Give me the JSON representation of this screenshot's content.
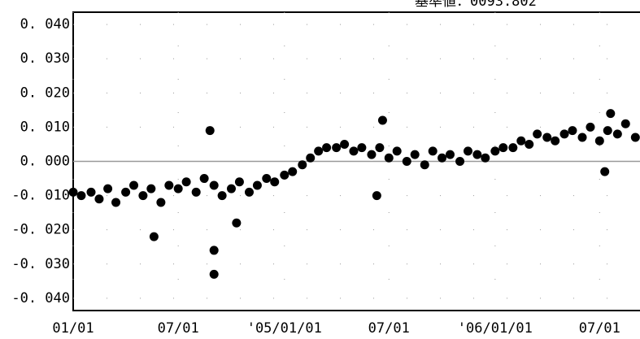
{
  "chart_data": {
    "type": "scatter",
    "title": "基準値：0093.802",
    "xlim": [
      "2004-01-01",
      "2006-09-09"
    ],
    "xticks": [
      {
        "value": "2004-01-01",
        "label": "01/01"
      },
      {
        "value": "2004-07-01",
        "label": "07/01"
      },
      {
        "value": "2005-01-01",
        "label": "'05/01/01"
      },
      {
        "value": "2005-07-01",
        "label": "07/01"
      },
      {
        "value": "2006-01-01",
        "label": "'06/01/01"
      },
      {
        "value": "2006-07-01",
        "label": "07/01"
      }
    ],
    "ylim": [
      -0.0436,
      0.0436
    ],
    "yticks": [
      {
        "value": 0.04,
        "label": "0. 040"
      },
      {
        "value": 0.03,
        "label": "0. 030"
      },
      {
        "value": 0.02,
        "label": "0. 020"
      },
      {
        "value": 0.01,
        "label": "0. 010"
      },
      {
        "value": 0,
        "label": "0. 000"
      },
      {
        "value": -0.01,
        "label": "-0. 010"
      },
      {
        "value": -0.02,
        "label": "-0. 020"
      },
      {
        "value": -0.03,
        "label": "-0. 030"
      },
      {
        "value": -0.04,
        "label": "-0. 040"
      }
    ],
    "grid": true,
    "color": "#000000",
    "x": [
      "2004-01-01",
      "2004-01-15",
      "2004-02-01",
      "2004-02-15",
      "2004-03-01",
      "2004-03-15",
      "2004-04-01",
      "2004-04-15",
      "2004-05-01",
      "2004-05-15",
      "2004-06-01",
      "2004-06-15",
      "2004-07-01",
      "2004-07-15",
      "2004-08-01",
      "2004-08-15",
      "2004-09-01",
      "2004-09-15",
      "2004-10-01",
      "2004-10-15",
      "2004-11-01",
      "2004-11-15",
      "2004-12-01",
      "2004-12-15",
      "2005-01-01",
      "2005-01-15",
      "2005-02-01",
      "2005-02-15",
      "2005-03-01",
      "2005-03-15",
      "2005-04-01",
      "2005-04-15",
      "2005-05-01",
      "2005-05-15",
      "2005-06-01",
      "2005-06-15",
      "2005-07-01",
      "2005-07-15",
      "2005-08-01",
      "2005-08-15",
      "2005-09-01",
      "2005-09-15",
      "2005-10-01",
      "2005-10-15",
      "2005-11-01",
      "2005-11-15",
      "2005-12-01",
      "2005-12-15",
      "2006-01-01",
      "2006-01-15",
      "2006-02-01",
      "2006-02-15",
      "2006-03-01",
      "2006-03-15",
      "2006-04-01",
      "2006-04-15",
      "2006-05-01",
      "2006-05-15",
      "2006-06-01",
      "2006-06-15",
      "2006-07-01",
      "2006-07-15",
      "2006-08-01",
      "2006-08-15",
      "2006-09-01",
      "2004-05-20",
      "2004-08-25",
      "2004-09-01",
      "2004-09-01",
      "2004-10-10",
      "2005-06-20",
      "2005-06-10",
      "2006-07-10",
      "2006-07-20"
    ],
    "values": [
      -0.009,
      -0.01,
      -0.009,
      -0.011,
      -0.008,
      -0.012,
      -0.009,
      -0.007,
      -0.01,
      -0.008,
      -0.012,
      -0.007,
      -0.008,
      -0.006,
      -0.009,
      -0.005,
      -0.007,
      -0.01,
      -0.008,
      -0.006,
      -0.009,
      -0.007,
      -0.005,
      -0.006,
      -0.004,
      -0.003,
      -0.001,
      0.001,
      0.003,
      0.004,
      0.004,
      0.005,
      0.003,
      0.004,
      0.002,
      0.004,
      0.001,
      0.003,
      0,
      0.002,
      -0.001,
      0.003,
      0.001,
      0.002,
      0,
      0.003,
      0.002,
      0.001,
      0.003,
      0.004,
      0.004,
      0.006,
      0.005,
      0.008,
      0.007,
      0.006,
      0.008,
      0.009,
      0.007,
      0.01,
      0.006,
      0.009,
      0.008,
      0.011,
      0.007,
      -0.022,
      0.009,
      -0.026,
      -0.033,
      -0.018,
      0.012,
      -0.01,
      -0.003,
      0.014
    ]
  }
}
